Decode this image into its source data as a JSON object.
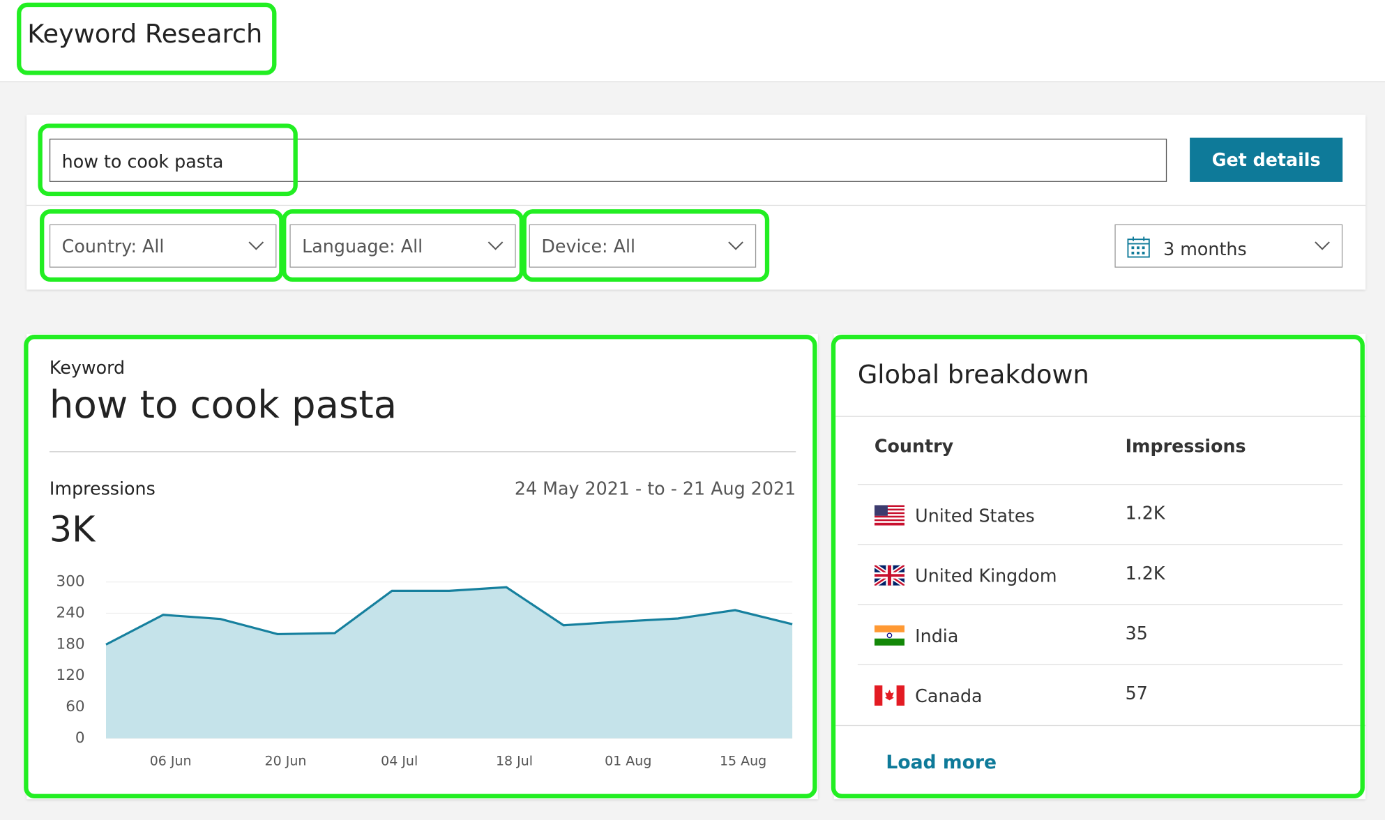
{
  "header": {
    "title": "Keyword Research"
  },
  "search": {
    "query": "how to cook pasta",
    "button": "Get details"
  },
  "filters": [
    "Country: All",
    "Language: All",
    "Device: All"
  ],
  "period": "3 months",
  "keyword_card": {
    "label": "Keyword",
    "keyword": "how to cook pasta",
    "metric_label": "Impressions",
    "date_range": "24 May 2021 - to - 21 Aug 2021",
    "total": "3K",
    "chart": {
      "type": "area",
      "color": "#16809e",
      "fill": "#c5e3ea",
      "x": [
        0,
        1,
        2,
        3,
        4,
        5,
        6,
        7,
        8,
        9,
        10,
        11,
        12
      ],
      "values": [
        180,
        237,
        229,
        200,
        202,
        283,
        283,
        290,
        217,
        224,
        230,
        246,
        219
      ],
      "xlim": [
        0,
        12
      ],
      "xticks": [
        {
          "value": 1.13,
          "label": "06 Jun"
        },
        {
          "value": 3.14,
          "label": "20 Jun"
        },
        {
          "value": 5.13,
          "label": "04 Jul"
        },
        {
          "value": 7.14,
          "label": "18 Jul"
        },
        {
          "value": 9.13,
          "label": "01 Aug"
        },
        {
          "value": 11.14,
          "label": "15 Aug"
        }
      ],
      "ylim": [
        0,
        300
      ],
      "yticks": [
        0,
        60,
        120,
        180,
        240,
        300
      ],
      "grid": true
    }
  },
  "breakdown": {
    "title": "Global breakdown",
    "columns": [
      "Country",
      "Impressions"
    ],
    "rows": [
      [
        "United States",
        "1.2K"
      ],
      [
        "United Kingdom",
        "1.2K"
      ],
      [
        "India",
        "35"
      ],
      [
        "Canada",
        "57"
      ]
    ],
    "load_more": "Load more"
  }
}
